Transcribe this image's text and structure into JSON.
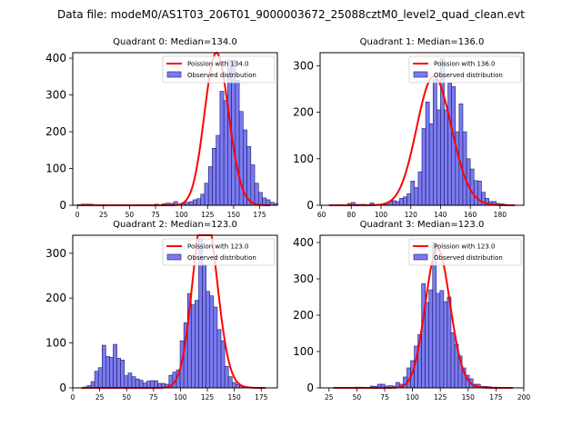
{
  "suptitle": "Data file: modeM0/AS1T03_206T01_9000003672_25088cztM0_level2_quad_clean.evt",
  "colors": {
    "bar_fill": "#7b7bf0",
    "bar_edge": "#1a1a66",
    "curve": "#ff0000"
  },
  "chart_data": [
    {
      "type": "bar",
      "title": "Quadrant 0: Median=134.0",
      "median": 134.0,
      "xlim": [
        -4.5,
        192
      ],
      "ylim": [
        0,
        415
      ],
      "xticks": [
        0,
        25,
        50,
        75,
        100,
        125,
        150,
        175
      ],
      "yticks": [
        0,
        100,
        200,
        300,
        400
      ],
      "bin_width": 3.7,
      "bins_start": 0,
      "values": [
        2,
        3,
        3,
        3,
        2,
        1,
        1,
        1,
        1,
        1,
        1,
        1,
        1,
        1,
        1,
        1,
        1,
        2,
        1,
        1,
        3,
        2,
        4,
        6,
        5,
        10,
        3,
        4,
        8,
        10,
        15,
        18,
        30,
        60,
        105,
        155,
        190,
        310,
        285,
        395,
        395,
        340,
        255,
        205,
        160,
        110,
        60,
        35,
        20,
        15,
        8,
        5
      ],
      "legend": [
        "Poission with 134.0",
        "Observed distribution"
      ],
      "curve_label": "Poission with 134.0",
      "bars_label": "Observed distribution",
      "curve_x_range": [
        0,
        185
      ]
    },
    {
      "type": "bar",
      "title": "Quadrant 1: Median=136.0",
      "median": 136.0,
      "xlim": [
        59,
        196
      ],
      "ylim": [
        0,
        328
      ],
      "xticks": [
        60,
        80,
        100,
        120,
        140,
        160,
        180
      ],
      "yticks": [
        0,
        100,
        200,
        300
      ],
      "bin_width": 2.5,
      "bins_start": 65,
      "values": [
        1,
        1,
        1,
        1,
        1,
        4,
        6,
        2,
        2,
        2,
        1,
        5,
        2,
        1,
        2,
        2,
        8,
        10,
        8,
        15,
        18,
        25,
        52,
        38,
        72,
        165,
        222,
        175,
        270,
        205,
        315,
        205,
        262,
        255,
        158,
        218,
        158,
        100,
        78,
        53,
        52,
        28,
        15,
        8,
        8,
        4,
        3,
        2,
        1,
        1
      ],
      "legend": [
        "Poission with 136.0",
        "Observed distribution"
      ],
      "curve_label": "Poission with 136.0",
      "bars_label": "Observed distribution",
      "curve_x_range": [
        65,
        190
      ]
    },
    {
      "type": "bar",
      "title": "Quadrant 2: Median=123.0",
      "median": 123.0,
      "xlim": [
        0,
        190
      ],
      "ylim": [
        0,
        340
      ],
      "xticks": [
        0,
        25,
        50,
        75,
        100,
        125,
        150,
        175
      ],
      "yticks": [
        0,
        100,
        200,
        300
      ],
      "bin_width": 3.45,
      "bins_start": 10,
      "values": [
        2,
        5,
        14,
        37,
        45,
        95,
        70,
        68,
        97,
        66,
        62,
        27,
        33,
        25,
        20,
        17,
        11,
        15,
        16,
        16,
        10,
        10,
        8,
        28,
        35,
        40,
        105,
        145,
        210,
        185,
        195,
        330,
        275,
        215,
        205,
        180,
        130,
        105,
        48,
        25,
        12,
        8,
        5,
        3,
        2,
        1
      ],
      "legend": [
        "Poission with 123.0",
        "Observed distribution"
      ],
      "curve_label": "Poission with 123.0",
      "bars_label": "Observed distribution",
      "curve_x_range": [
        8,
        179
      ]
    },
    {
      "type": "bar",
      "title": "Quadrant 3: Median=123.0",
      "median": 123.0,
      "xlim": [
        17,
        200
      ],
      "ylim": [
        0,
        420
      ],
      "xticks": [
        25,
        50,
        75,
        100,
        125,
        150,
        175,
        200
      ],
      "yticks": [
        0,
        100,
        200,
        300,
        400
      ],
      "bin_width": 3.3,
      "bins_start": 29,
      "values": [
        1,
        1,
        1,
        1,
        1,
        1,
        2,
        2,
        1,
        1,
        5,
        4,
        10,
        10,
        5,
        6,
        5,
        15,
        10,
        30,
        55,
        75,
        115,
        147,
        287,
        235,
        270,
        400,
        260,
        268,
        237,
        250,
        152,
        120,
        88,
        55,
        35,
        25,
        10,
        10,
        4,
        4,
        3,
        2,
        2,
        1,
        1,
        1,
        1
      ],
      "legend": [
        "Poission with 123.0",
        "Observed distribution"
      ],
      "curve_label": "Poission with 123.0",
      "bars_label": "Observed distribution",
      "curve_x_range": [
        29,
        190
      ]
    }
  ]
}
